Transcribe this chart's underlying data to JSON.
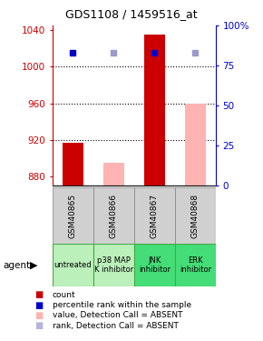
{
  "title": "GDS1108 / 1459516_at",
  "samples": [
    "GSM40865",
    "GSM40866",
    "GSM40867",
    "GSM40868"
  ],
  "agents": [
    "untreated",
    "p38 MAP\nK inhibitor",
    "JNK\ninhibitor",
    "ERK\ninhibitor"
  ],
  "ylim_left": [
    870,
    1045
  ],
  "ylim_right": [
    0,
    100
  ],
  "yticks_left": [
    880,
    920,
    960,
    1000,
    1040
  ],
  "yticks_right": [
    0,
    25,
    50,
    75,
    100
  ],
  "bar_values": [
    917,
    895,
    1035,
    960
  ],
  "bar_colors": [
    "#cc0000",
    "#ffb3b3",
    "#cc0000",
    "#ffb3b3"
  ],
  "dot_values": [
    83,
    83,
    83,
    83
  ],
  "dot_colors": [
    "#0000cc",
    "#9999cc",
    "#0000cc",
    "#9999cc"
  ],
  "bar_bottom": 870,
  "agent_bg_colors": [
    "#bbf0bb",
    "#bbf0bb",
    "#44dd77",
    "#44dd77"
  ],
  "agent_border_color": "#44aa44",
  "sample_bg_color": "#d0d0d0",
  "sample_border_color": "#808080",
  "grid_yticks": [
    1000,
    960,
    920
  ],
  "left_axis_color": "#cc0000",
  "right_axis_color": "#0000cc",
  "legend_items": [
    {
      "color": "#cc0000",
      "label": "count"
    },
    {
      "color": "#0000cc",
      "label": "percentile rank within the sample"
    },
    {
      "color": "#ffb3b3",
      "label": "value, Detection Call = ABSENT"
    },
    {
      "color": "#b3b3dd",
      "label": "rank, Detection Call = ABSENT"
    }
  ]
}
